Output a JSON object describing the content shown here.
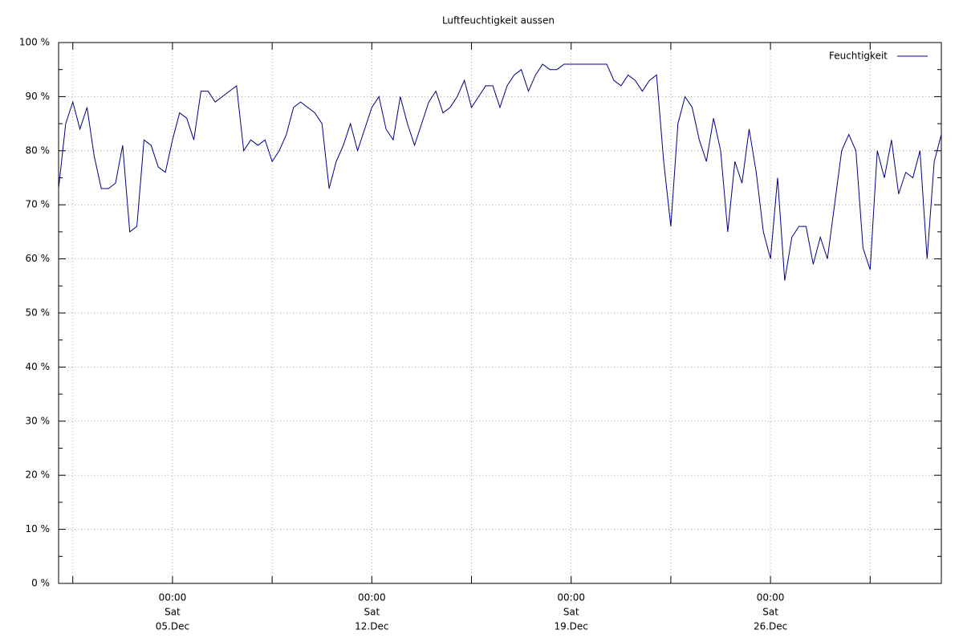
{
  "chart_data": {
    "type": "line",
    "title": "Luftfeuchtigkeit aussen",
    "x": [
      "12-01 00:00",
      "12-01 06:00",
      "12-01 12:00",
      "12-01 18:00",
      "12-02 00:00",
      "12-02 06:00",
      "12-02 12:00",
      "12-02 18:00",
      "12-03 00:00",
      "12-03 06:00",
      "12-03 12:00",
      "12-03 18:00",
      "12-04 00:00",
      "12-04 06:00",
      "12-04 12:00",
      "12-04 18:00",
      "12-05 00:00",
      "12-05 06:00",
      "12-05 12:00",
      "12-05 18:00",
      "12-06 00:00",
      "12-06 06:00",
      "12-06 12:00",
      "12-06 18:00",
      "12-07 00:00",
      "12-07 06:00",
      "12-07 12:00",
      "12-07 18:00",
      "12-08 00:00",
      "12-08 06:00",
      "12-08 12:00",
      "12-08 18:00",
      "12-09 00:00",
      "12-09 06:00",
      "12-09 12:00",
      "12-09 18:00",
      "12-10 00:00",
      "12-10 06:00",
      "12-10 12:00",
      "12-10 18:00",
      "12-11 00:00",
      "12-11 06:00",
      "12-11 12:00",
      "12-11 18:00",
      "12-12 00:00",
      "12-12 06:00",
      "12-12 12:00",
      "12-12 18:00",
      "12-13 00:00",
      "12-13 06:00",
      "12-13 12:00",
      "12-13 18:00",
      "12-14 00:00",
      "12-14 06:00",
      "12-14 12:00",
      "12-14 18:00",
      "12-15 00:00",
      "12-15 06:00",
      "12-15 12:00",
      "12-15 18:00",
      "12-16 00:00",
      "12-16 06:00",
      "12-16 12:00",
      "12-16 18:00",
      "12-17 00:00",
      "12-17 06:00",
      "12-17 12:00",
      "12-17 18:00",
      "12-18 00:00",
      "12-18 06:00",
      "12-18 12:00",
      "12-18 18:00",
      "12-19 00:00",
      "12-19 06:00",
      "12-19 12:00",
      "12-19 18:00",
      "12-20 00:00",
      "12-20 06:00",
      "12-20 12:00",
      "12-20 18:00",
      "12-21 00:00",
      "12-21 06:00",
      "12-21 12:00",
      "12-21 18:00",
      "12-22 00:00",
      "12-22 06:00",
      "12-22 12:00",
      "12-22 18:00",
      "12-23 00:00",
      "12-23 06:00",
      "12-23 12:00",
      "12-23 18:00",
      "12-24 00:00",
      "12-24 06:00",
      "12-24 12:00",
      "12-24 18:00",
      "12-25 00:00",
      "12-25 06:00",
      "12-25 12:00",
      "12-25 18:00",
      "12-26 00:00",
      "12-26 06:00",
      "12-26 12:00",
      "12-26 18:00",
      "12-27 00:00",
      "12-27 06:00",
      "12-27 12:00",
      "12-27 18:00",
      "12-28 00:00",
      "12-28 06:00",
      "12-28 12:00",
      "12-28 18:00",
      "12-29 00:00",
      "12-29 06:00",
      "12-29 12:00",
      "12-29 18:00",
      "12-30 00:00",
      "12-30 06:00",
      "12-30 12:00",
      "12-30 18:00",
      "12-31 00:00",
      "12-31 06:00",
      "12-31 12:00",
      "12-31 18:00",
      "01-01 00:00"
    ],
    "series": [
      {
        "name": "Feuchtigkeit",
        "color": "#000080",
        "values": [
          73,
          85,
          89,
          84,
          88,
          79,
          73,
          73,
          74,
          81,
          65,
          66,
          82,
          81,
          77,
          76,
          82,
          87,
          86,
          82,
          91,
          91,
          89,
          90,
          91,
          92,
          80,
          82,
          81,
          82,
          78,
          80,
          83,
          88,
          89,
          88,
          87,
          85,
          73,
          78,
          81,
          85,
          80,
          84,
          88,
          90,
          84,
          82,
          90,
          85,
          81,
          85,
          89,
          91,
          87,
          88,
          90,
          93,
          88,
          90,
          92,
          92,
          88,
          92,
          94,
          95,
          91,
          94,
          96,
          95,
          95,
          96,
          96,
          96,
          96,
          96,
          96,
          96,
          93,
          92,
          94,
          93,
          91,
          93,
          94,
          78,
          66,
          85,
          90,
          88,
          82,
          78,
          86,
          80,
          65,
          78,
          74,
          84,
          76,
          65,
          60,
          75,
          56,
          64,
          66,
          66,
          59,
          64,
          60,
          70,
          80,
          83,
          80,
          62,
          58,
          80,
          75,
          82,
          72,
          76,
          75,
          80,
          60,
          78,
          83
        ]
      }
    ],
    "xlim": [
      "12-01 00:00",
      "01-01 00:00"
    ],
    "xticks": [
      {
        "value": "12-01 12:00",
        "label": null
      },
      {
        "value": "12-05 00:00",
        "label": [
          "00:00",
          "Sat",
          "05.Dec"
        ]
      },
      {
        "value": "12-08 12:00",
        "label": null
      },
      {
        "value": "12-12 00:00",
        "label": [
          "00:00",
          "Sat",
          "12.Dec"
        ]
      },
      {
        "value": "12-15 12:00",
        "label": null
      },
      {
        "value": "12-19 00:00",
        "label": [
          "00:00",
          "Sat",
          "19.Dec"
        ]
      },
      {
        "value": "12-22 12:00",
        "label": null
      },
      {
        "value": "12-26 00:00",
        "label": [
          "00:00",
          "Sat",
          "26.Dec"
        ]
      },
      {
        "value": "12-29 12:00",
        "label": null
      }
    ],
    "ylim": [
      0,
      100
    ],
    "yticks": [
      {
        "value": 0,
        "label": "0 %"
      },
      {
        "value": 10,
        "label": "10 %"
      },
      {
        "value": 20,
        "label": "20 %"
      },
      {
        "value": 30,
        "label": "30 %"
      },
      {
        "value": 40,
        "label": "40 %"
      },
      {
        "value": 50,
        "label": "50 %"
      },
      {
        "value": 60,
        "label": "60 %"
      },
      {
        "value": 70,
        "label": "70 %"
      },
      {
        "value": 80,
        "label": "80 %"
      },
      {
        "value": 90,
        "label": "90 %"
      },
      {
        "value": 100,
        "label": "100 %"
      }
    ],
    "yminorticks": [
      5,
      15,
      25,
      35,
      45,
      55,
      65,
      75,
      85,
      95
    ],
    "grid": true,
    "legend": "top-right"
  }
}
